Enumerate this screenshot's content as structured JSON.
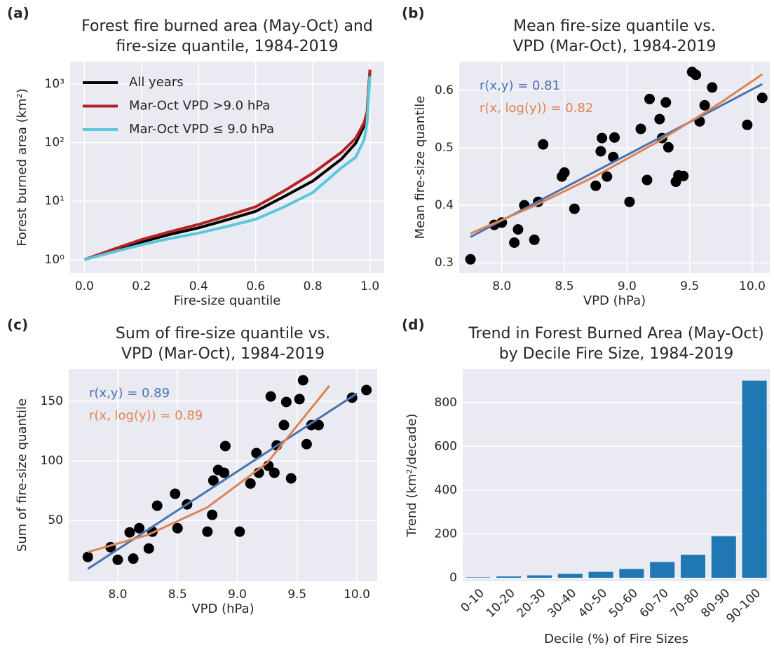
{
  "chart_data": [
    {
      "type": "line",
      "panel_label": "(a)",
      "title": [
        "Forest fire burned area (May-Oct) and",
        "fire-size quantile, 1984-2019"
      ],
      "xlabel": "Fire-size quantile",
      "ylabel": "Forest burned area (km²)",
      "yscale": "log",
      "grid": true,
      "legend": "upper left",
      "xlim": [
        -0.05,
        1.05
      ],
      "ylim": [
        0.59,
        2400
      ],
      "xticks": [
        {
          "value": 0,
          "label": "0.0"
        },
        0.2,
        0.4,
        0.6,
        0.8,
        {
          "value": 1,
          "label": "1.0"
        }
      ],
      "yticks": [
        {
          "value": 1,
          "label": "10⁰"
        },
        {
          "value": 10,
          "label": "10¹"
        },
        {
          "value": 100,
          "label": "10²"
        },
        {
          "value": 1000,
          "label": "10³"
        }
      ],
      "x": [
        0,
        0.1,
        0.2,
        0.3,
        0.4,
        0.5,
        0.6,
        0.7,
        0.8,
        0.9,
        0.95,
        0.98,
        0.99,
        1.0
      ],
      "series": [
        {
          "name": "All years",
          "color": "#000000",
          "values": [
            1,
            1.4,
            2.0,
            2.7,
            3.5,
            4.8,
            6.7,
            12,
            22,
            52,
            97,
            194,
            292,
            1650
          ]
        },
        {
          "name": "Mar-Oct VPD >9.0 hPa",
          "color": "#b22222",
          "values": [
            1,
            1.5,
            2.2,
            3.0,
            4.0,
            5.6,
            8,
            15,
            30,
            68,
            118,
            220,
            335,
            1750
          ]
        },
        {
          "name": "Mar-Oct VPD ≤ 9.0 hPa",
          "color": "#5bc8dc",
          "values": [
            1,
            1.35,
            1.8,
            2.3,
            2.85,
            3.7,
            4.9,
            8,
            14,
            37,
            56,
            112,
            220,
            1350
          ]
        }
      ]
    },
    {
      "type": "scatter",
      "panel_label": "(b)",
      "title": [
        "Mean fire-size quantile vs.",
        "VPD (Mar-Oct), 1984-2019"
      ],
      "xlabel": "VPD (hPa)",
      "ylabel": "Mean fire-size quantile",
      "grid": true,
      "color": "#000000",
      "xlim": [
        7.66,
        10.14
      ],
      "ylim": [
        0.282,
        0.65
      ],
      "xticks": [
        {
          "value": 8,
          "label": "8.0"
        },
        8.5,
        {
          "value": 9,
          "label": "9.0"
        },
        9.5,
        {
          "value": 10,
          "label": "10.0"
        }
      ],
      "yticks": [
        0.3,
        0.4,
        0.5,
        0.6
      ],
      "x": [
        7.75,
        7.94,
        8.0,
        8.1,
        8.13,
        8.18,
        8.26,
        8.29,
        8.33,
        8.48,
        8.5,
        8.58,
        8.75,
        8.79,
        8.8,
        8.84,
        8.89,
        8.9,
        9.02,
        9.11,
        9.16,
        9.18,
        9.26,
        9.28,
        9.31,
        9.33,
        9.39,
        9.41,
        9.45,
        9.52,
        9.55,
        9.58,
        9.62,
        9.68,
        9.96,
        10.08
      ],
      "values": [
        0.306,
        0.366,
        0.37,
        0.335,
        0.358,
        0.4,
        0.34,
        0.406,
        0.506,
        0.45,
        0.457,
        0.394,
        0.434,
        0.494,
        0.517,
        0.45,
        0.484,
        0.518,
        0.406,
        0.533,
        0.444,
        0.585,
        0.55,
        0.517,
        0.579,
        0.501,
        0.441,
        0.452,
        0.451,
        0.632,
        0.627,
        0.546,
        0.574,
        0.605,
        0.54,
        0.587
      ],
      "fits": [
        {
          "label": "r(x,y) = 0.81",
          "color": "#4c72b0",
          "x": [
            7.75,
            10.08
          ],
          "values": [
            0.345,
            0.611
          ]
        },
        {
          "label": "r(x, log(y)) = 0.82",
          "color": "#dd8452",
          "x": [
            7.75,
            8.25,
            8.75,
            9.25,
            9.75,
            10.08
          ],
          "values": [
            0.351,
            0.398,
            0.451,
            0.511,
            0.579,
            0.628
          ]
        }
      ]
    },
    {
      "type": "scatter",
      "panel_label": "(c)",
      "title": [
        "Sum of fire-size quantile vs.",
        "VPD (Mar-Oct), 1984-2019"
      ],
      "xlabel": "VPD (hPa)",
      "ylabel": "Sum of fire-size quantile",
      "grid": true,
      "color": "#000000",
      "xlim": [
        7.59,
        10.17
      ],
      "ylim": [
        -1,
        177
      ],
      "xticks": [
        {
          "value": 8,
          "label": "8.0"
        },
        8.5,
        {
          "value": 9,
          "label": "9.0"
        },
        9.5,
        {
          "value": 10,
          "label": "10.0"
        }
      ],
      "yticks": [
        50,
        100,
        150
      ],
      "x": [
        7.75,
        7.94,
        8.0,
        8.1,
        8.13,
        8.18,
        8.26,
        8.29,
        8.33,
        8.48,
        8.5,
        8.58,
        8.75,
        8.79,
        8.8,
        8.84,
        8.89,
        8.9,
        9.02,
        9.11,
        9.16,
        9.18,
        9.26,
        9.28,
        9.31,
        9.33,
        9.39,
        9.41,
        9.45,
        9.52,
        9.55,
        9.58,
        9.62,
        9.68,
        9.96,
        10.08
      ],
      "values": [
        19.4,
        27.6,
        17,
        40,
        18,
        43.5,
        26.5,
        40.6,
        62.4,
        72.4,
        43.5,
        63.5,
        40.6,
        54.7,
        83.5,
        92.4,
        90,
        112.4,
        40.6,
        81,
        106.5,
        90,
        95.9,
        154,
        90,
        113,
        130,
        149.4,
        85.3,
        151.8,
        167.6,
        114,
        130,
        130,
        153,
        159.4
      ],
      "fits": [
        {
          "label": "r(x,y) = 0.89",
          "color": "#4c72b0",
          "x": [
            7.75,
            10.0
          ],
          "values": [
            9.4,
            156.5
          ]
        },
        {
          "label": "r(x, log(y)) = 0.89",
          "color": "#dd8452",
          "x": [
            7.75,
            8.25,
            8.75,
            9.25,
            9.77
          ],
          "values": [
            23.5,
            37.9,
            61.0,
            98.4,
            163
          ]
        }
      ]
    },
    {
      "type": "bar",
      "panel_label": "(d)",
      "title": [
        "Trend in Forest Burned Area (May-Oct)",
        "by Decile Fire Size, 1984-2019"
      ],
      "xlabel": "Decile (%) of Fire Sizes",
      "ylabel": "Trend (km²/decade)",
      "grid": true,
      "color": "#1f77b4",
      "ylim": [
        -16,
        953
      ],
      "yticks": [
        0,
        200,
        400,
        600,
        800
      ],
      "categories": [
        "0-10",
        "10-20",
        "20-30",
        "30-40",
        "40-50",
        "50-60",
        "60-70",
        "70-80",
        "80-90",
        "90-100"
      ],
      "values": [
        2,
        6,
        11,
        18,
        27,
        40,
        72,
        105,
        190,
        900
      ]
    }
  ]
}
